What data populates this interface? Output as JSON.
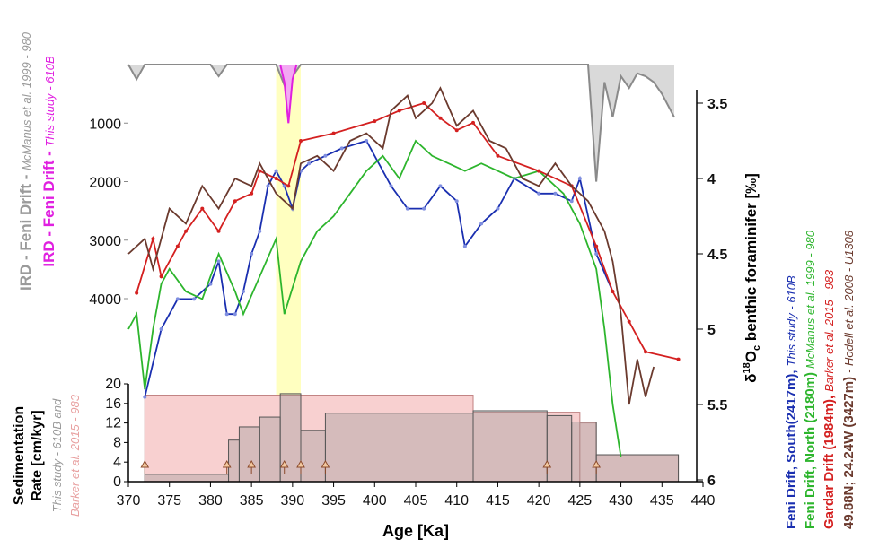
{
  "chart_data": {
    "type": "line",
    "x_label": "Age [Ka]",
    "xlim": [
      370,
      440
    ],
    "xticks": [
      370,
      375,
      380,
      385,
      390,
      395,
      400,
      405,
      410,
      415,
      420,
      425,
      430,
      435,
      440
    ],
    "highlight_band": [
      388,
      391
    ],
    "highlight_color": "#ffffc0",
    "ird": {
      "ylim": [
        0,
        4000
      ],
      "yticks": [
        1000,
        2000,
        3000,
        4000
      ],
      "series": [
        {
          "name": "IRD - Feni Drift -",
          "source": "McManus et al. 1999 - 980",
          "color": "#8a8a8a",
          "fill": "#d9d9d9",
          "x": [
            370,
            371,
            372,
            380,
            381,
            382,
            388,
            389,
            390,
            391,
            400,
            420,
            426,
            427,
            428,
            429,
            430,
            431,
            432,
            433,
            434,
            435,
            436.5
          ],
          "values": [
            0,
            250,
            0,
            0,
            200,
            0,
            0,
            350,
            200,
            0,
            0,
            0,
            0,
            2000,
            300,
            900,
            200,
            400,
            150,
            200,
            300,
            500,
            900
          ]
        },
        {
          "name": "IRD - Feni Drift -",
          "source": "This study - 610B",
          "color": "#e020e0",
          "fill": "#f3a8f3",
          "x": [
            388.5,
            389,
            389.5,
            390,
            390.5
          ],
          "values": [
            0,
            300,
            1000,
            250,
            0
          ]
        }
      ]
    },
    "isotope": {
      "label_parts": [
        "δ",
        "18",
        "O",
        "c",
        " benthic foraminifer [‰]"
      ],
      "y2lim": [
        3.5,
        6
      ],
      "y2ticks": [
        3.5,
        4,
        4.5,
        5,
        5.5,
        6
      ],
      "series": [
        {
          "name": "Feni Drift, South(2417m),",
          "source": "This study - 610B",
          "color": "#1a2fb0",
          "marker": "#7f8ee0",
          "x": [
            372,
            374,
            376,
            378,
            380,
            381,
            382,
            383,
            384,
            385,
            386,
            387,
            388,
            389,
            390,
            391,
            392,
            394,
            396,
            399,
            402,
            404,
            406,
            408,
            410,
            411,
            413,
            415,
            417,
            420,
            422,
            424,
            425,
            427,
            429
          ],
          "values": [
            5.45,
            5.0,
            4.8,
            4.8,
            4.7,
            4.55,
            4.9,
            4.9,
            4.75,
            4.5,
            4.35,
            4.05,
            3.95,
            4.05,
            4.2,
            3.95,
            3.9,
            3.85,
            3.8,
            3.75,
            4.05,
            4.2,
            4.2,
            4.05,
            4.15,
            4.45,
            4.3,
            4.2,
            4.0,
            4.1,
            4.1,
            4.15,
            4.0,
            4.5,
            4.75
          ]
        },
        {
          "name": "Feni Drift, North (2180m)",
          "source": "McManus et al. 1999 - 980",
          "color": "#2db52d",
          "x": [
            370,
            371,
            372,
            373,
            374,
            375,
            377,
            379,
            381,
            383,
            384,
            386,
            388,
            389,
            391,
            393,
            395,
            397,
            399,
            401,
            403,
            405,
            407,
            409,
            411,
            413,
            415,
            417,
            420,
            423,
            425,
            427,
            428,
            429,
            430
          ],
          "values": [
            5.0,
            4.9,
            5.4,
            5.0,
            4.7,
            4.6,
            4.75,
            4.8,
            4.5,
            4.75,
            4.9,
            4.65,
            4.4,
            4.9,
            4.55,
            4.35,
            4.25,
            4.1,
            3.95,
            3.85,
            4.0,
            3.75,
            3.85,
            3.9,
            3.95,
            3.9,
            3.95,
            4.0,
            3.95,
            4.1,
            4.3,
            4.6,
            5.0,
            5.5,
            5.85
          ]
        },
        {
          "name": "Gardar Drift (1984m),",
          "source": "Barker et al. 2015 - 983",
          "color": "#d42020",
          "marker": "#d42020",
          "x": [
            371,
            373,
            374,
            376,
            377,
            379,
            381,
            383,
            385,
            386,
            388,
            389.5,
            391,
            395,
            400,
            403,
            406,
            408,
            410,
            412,
            415,
            420,
            424,
            427,
            429,
            431,
            433,
            437
          ],
          "values": [
            4.76,
            4.4,
            4.65,
            4.45,
            4.35,
            4.2,
            4.35,
            4.15,
            4.1,
            3.95,
            4.0,
            4.05,
            3.75,
            3.7,
            3.62,
            3.55,
            3.5,
            3.6,
            3.68,
            3.63,
            3.85,
            3.95,
            4.05,
            4.45,
            4.75,
            4.95,
            5.15,
            5.2
          ]
        },
        {
          "name": "49.88N; 24.24W (3427m)",
          "source": "- Hodell et al. 2008 - U1308",
          "color": "#6b3a2e",
          "x": [
            370,
            372,
            373,
            375,
            377,
            379,
            381,
            383,
            385,
            386,
            388,
            390,
            391,
            393,
            395,
            397,
            399,
            401,
            402,
            404,
            405,
            407,
            408,
            410,
            412,
            414,
            416,
            418,
            420,
            422,
            424,
            426,
            428,
            429,
            430,
            431,
            432,
            433,
            434
          ],
          "values": [
            4.5,
            4.4,
            4.6,
            4.2,
            4.3,
            4.05,
            4.2,
            4.0,
            4.05,
            3.9,
            4.1,
            4.2,
            3.9,
            3.85,
            3.95,
            3.75,
            3.7,
            3.8,
            3.55,
            3.45,
            3.6,
            3.5,
            3.4,
            3.65,
            3.55,
            3.75,
            3.8,
            4.0,
            4.05,
            3.9,
            4.05,
            4.15,
            4.35,
            4.55,
            4.9,
            5.5,
            5.2,
            5.45,
            5.25
          ]
        }
      ]
    },
    "sed_rate": {
      "label": [
        "Sedimentation",
        "Rate [cm/kyr]"
      ],
      "ylim": [
        0,
        20
      ],
      "yticks": [
        0,
        4,
        8,
        12,
        16,
        20
      ],
      "series": [
        {
          "name": "Barker et al. 2015 - 983",
          "color": "#c08080",
          "fill": "#f8d0d0",
          "edges": [
            372,
            412,
            425,
            427,
            437
          ],
          "values": [
            17.7,
            14.2,
            12,
            5.5
          ]
        },
        {
          "name": "This study - 610B and",
          "color": "#555555",
          "fill": "rgba(150,150,150,0.35)",
          "edges": [
            372,
            382.2,
            383.5,
            386,
            388.5,
            391,
            394,
            412,
            421,
            424,
            427,
            437
          ],
          "values": [
            1.5,
            8.5,
            11.2,
            13.2,
            18,
            10.5,
            14,
            14.5,
            13.5,
            12.2,
            5.5
          ]
        }
      ],
      "tie_points": [
        372,
        382,
        385,
        389,
        391,
        394,
        421,
        427
      ]
    }
  }
}
